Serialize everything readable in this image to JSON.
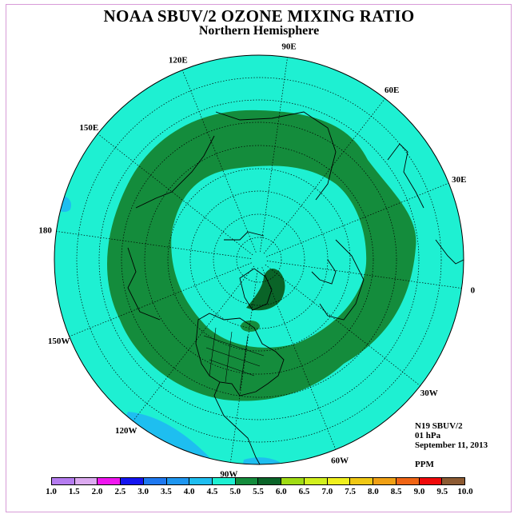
{
  "title": "NOAA SBUV/2 OZONE MIXING RATIO",
  "subtitle": "Northern Hemisphere",
  "longitude_labels": [
    {
      "text": "90E",
      "lon": 90
    },
    {
      "text": "60E",
      "lon": 60
    },
    {
      "text": "30E",
      "lon": 30
    },
    {
      "text": "0",
      "lon": 0
    },
    {
      "text": "30W",
      "lon": -30
    },
    {
      "text": "60W",
      "lon": -60
    },
    {
      "text": "90W",
      "lon": -90
    },
    {
      "text": "120W",
      "lon": -120
    },
    {
      "text": "150W",
      "lon": -150
    },
    {
      "text": "180",
      "lon": 180
    },
    {
      "text": "150E",
      "lon": 150
    },
    {
      "text": "120E",
      "lon": 120
    }
  ],
  "info": {
    "instrument": "N19 SBUV/2",
    "level": "01 hPa",
    "date": "September 11, 2013"
  },
  "units": "PPM",
  "colorbar": {
    "colors": [
      "#b57cf0",
      "#dcaaf0",
      "#f016f0",
      "#1414f0",
      "#1e78f0",
      "#1e96f0",
      "#1ebef0",
      "#1ef0d2",
      "#148c3c",
      "#0a6428",
      "#a0dc14",
      "#d2f01e",
      "#f0f01e",
      "#f0c814",
      "#f0a014",
      "#f06414",
      "#f00a0a",
      "#8c5a32"
    ],
    "labels": [
      "1.0",
      "1.5",
      "2.0",
      "2.5",
      "3.0",
      "3.5",
      "4.0",
      "4.5",
      "5.0",
      "5.5",
      "6.0",
      "6.5",
      "7.0",
      "7.5",
      "8.0",
      "8.5",
      "9.0",
      "9.5",
      "10.0"
    ]
  },
  "colors": {
    "background_field": "#1ef0d2",
    "ring_field": "#148c3c",
    "dark_patch": "#0a6428",
    "light_blue_patch": "#1ebef0",
    "frame": "#d79bd7"
  }
}
